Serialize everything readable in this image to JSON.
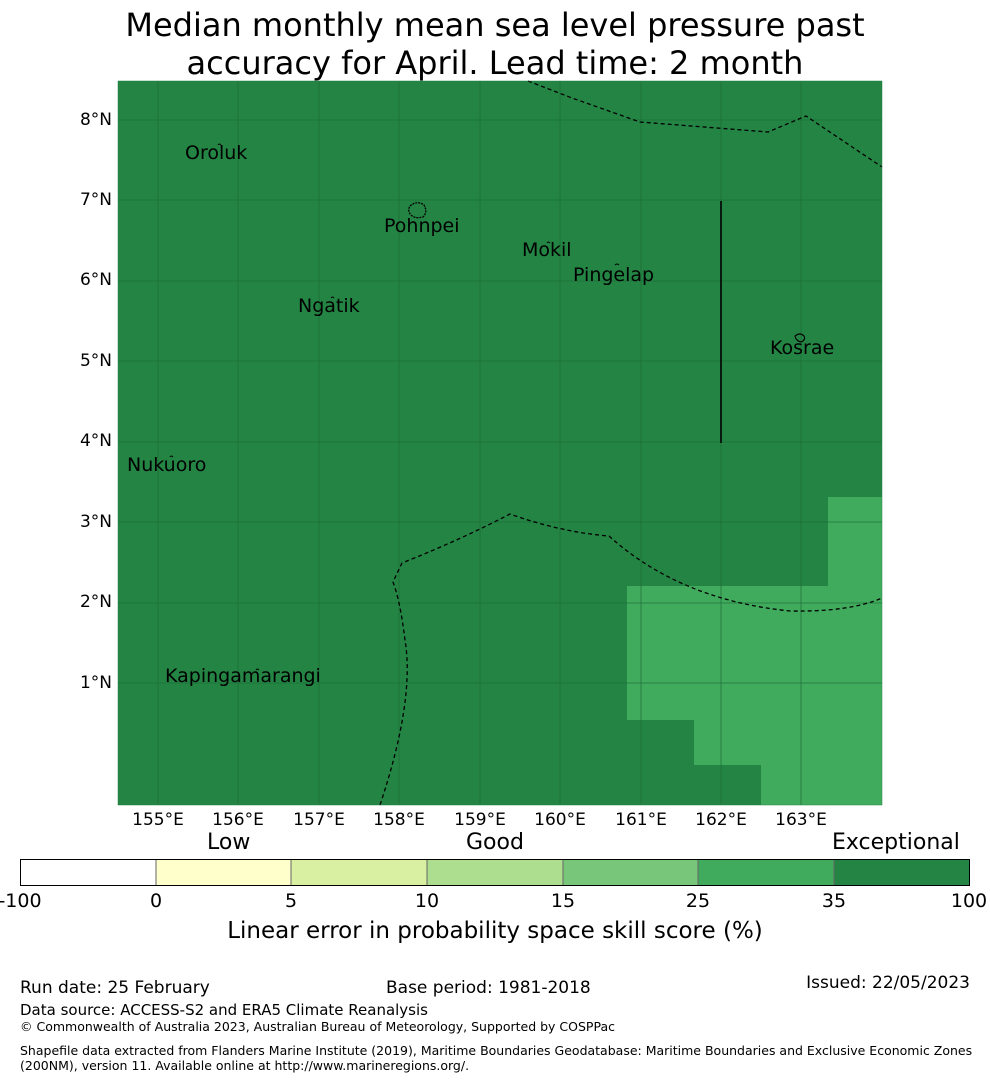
{
  "title": {
    "line1": "Median monthly mean sea level pressure past",
    "line2": "accuracy for April. Lead time: 2 month"
  },
  "map": {
    "lat_labels": [
      "8°N",
      "7°N",
      "6°N",
      "5°N",
      "4°N",
      "3°N",
      "2°N",
      "1°N"
    ],
    "lon_labels": [
      "155°E",
      "156°E",
      "157°E",
      "158°E",
      "159°E",
      "160°E",
      "161°E",
      "162°E",
      "163°E"
    ],
    "places": [
      "Oroluk",
      "Pohnpei",
      "Mokil",
      "Pingelap",
      "Ngatik",
      "Kosrae",
      "Nukuoro",
      "Kapingamarangi"
    ],
    "colors": {
      "exceptional": "#238443",
      "good_high": "#41ab5d",
      "grid": "#1e6e38"
    }
  },
  "colorbar": {
    "categories": [
      "Low",
      "Good",
      "Exceptional"
    ],
    "ticks": [
      "-100",
      "0",
      "5",
      "10",
      "15",
      "25",
      "35",
      "100"
    ],
    "colors": [
      "#ffffff",
      "#ffffcc",
      "#d9f0a3",
      "#addd8e",
      "#78c679",
      "#41ab5d",
      "#238443"
    ],
    "label": "Linear error in probability space skill score (%)"
  },
  "footer": {
    "run_date": "Run date: 25 February",
    "base_period": "Base period: 1981-2018",
    "issued": "Issued: 22/05/2023",
    "data_source": "Data source: ACCESS-S2 and ERA5 Climate Reanalysis",
    "copyright": "© Commonwealth of Australia 2023, Australian Bureau of Meteorology, Supported by COSPPac",
    "shapefile1": "Shapefile data extracted from Flanders Marine Institute (2019), Maritime Boundaries Geodatabase: Maritime Boundaries and Exclusive Economic Zones",
    "shapefile2": "(200NM), version 11. Available online at http://www.marineregions.org/."
  }
}
